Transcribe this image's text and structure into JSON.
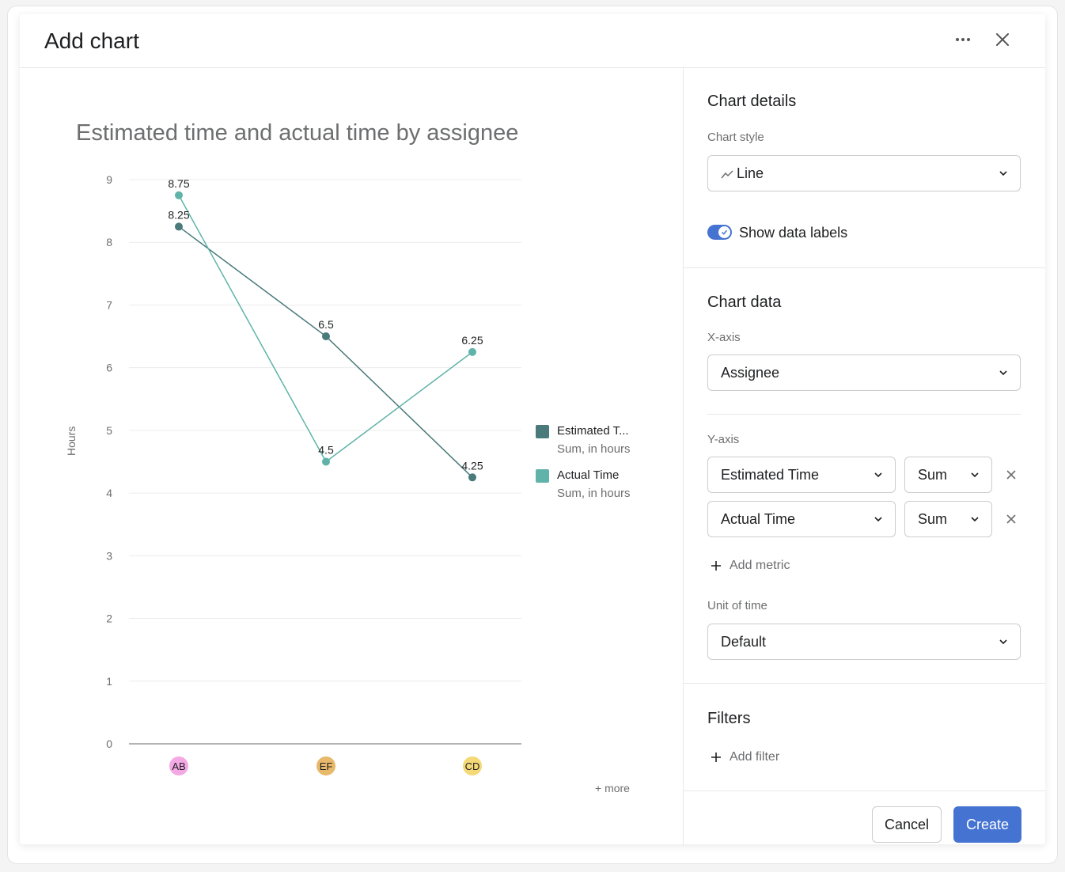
{
  "dialog": {
    "title": "Add chart"
  },
  "chart_data": {
    "type": "line",
    "title": "Estimated time and actual time by assignee",
    "xlabel": "",
    "ylabel": "Hours",
    "ylim": [
      0,
      9
    ],
    "yticks": [
      0,
      1,
      2,
      3,
      4,
      5,
      6,
      7,
      8,
      9
    ],
    "categories": [
      "AB",
      "EF",
      "CD"
    ],
    "category_colors": [
      "#f4a9e5",
      "#e8b96a",
      "#f5d977"
    ],
    "grid": true,
    "legend_position": "right",
    "series": [
      {
        "name": "Estimated T...",
        "subtitle": "Sum, in hours",
        "color": "#4a7a7a",
        "values": [
          8.25,
          6.5,
          4.25
        ],
        "labels": [
          "8.25",
          "6.5",
          "4.25"
        ]
      },
      {
        "name": "Actual Time",
        "subtitle": "Sum, in hours",
        "color": "#5fb3a8",
        "values": [
          8.75,
          4.5,
          6.25
        ],
        "labels": [
          "8.75",
          "4.5",
          "6.25"
        ]
      }
    ],
    "more_link": "+ more"
  },
  "panel": {
    "chart_details": {
      "title": "Chart details",
      "chart_style_label": "Chart style",
      "chart_style_value": "Line",
      "show_data_labels": "Show data labels",
      "show_data_labels_on": true
    },
    "chart_data": {
      "title": "Chart data",
      "x_axis_label": "X-axis",
      "x_axis_value": "Assignee",
      "y_axis_label": "Y-axis",
      "metrics": [
        {
          "field": "Estimated Time",
          "aggregation": "Sum"
        },
        {
          "field": "Actual Time",
          "aggregation": "Sum"
        }
      ],
      "add_metric": "Add metric",
      "unit_of_time_label": "Unit of time",
      "unit_of_time_value": "Default"
    },
    "filters": {
      "title": "Filters",
      "add_filter": "Add filter"
    },
    "footer": {
      "cancel": "Cancel",
      "create": "Create"
    }
  }
}
